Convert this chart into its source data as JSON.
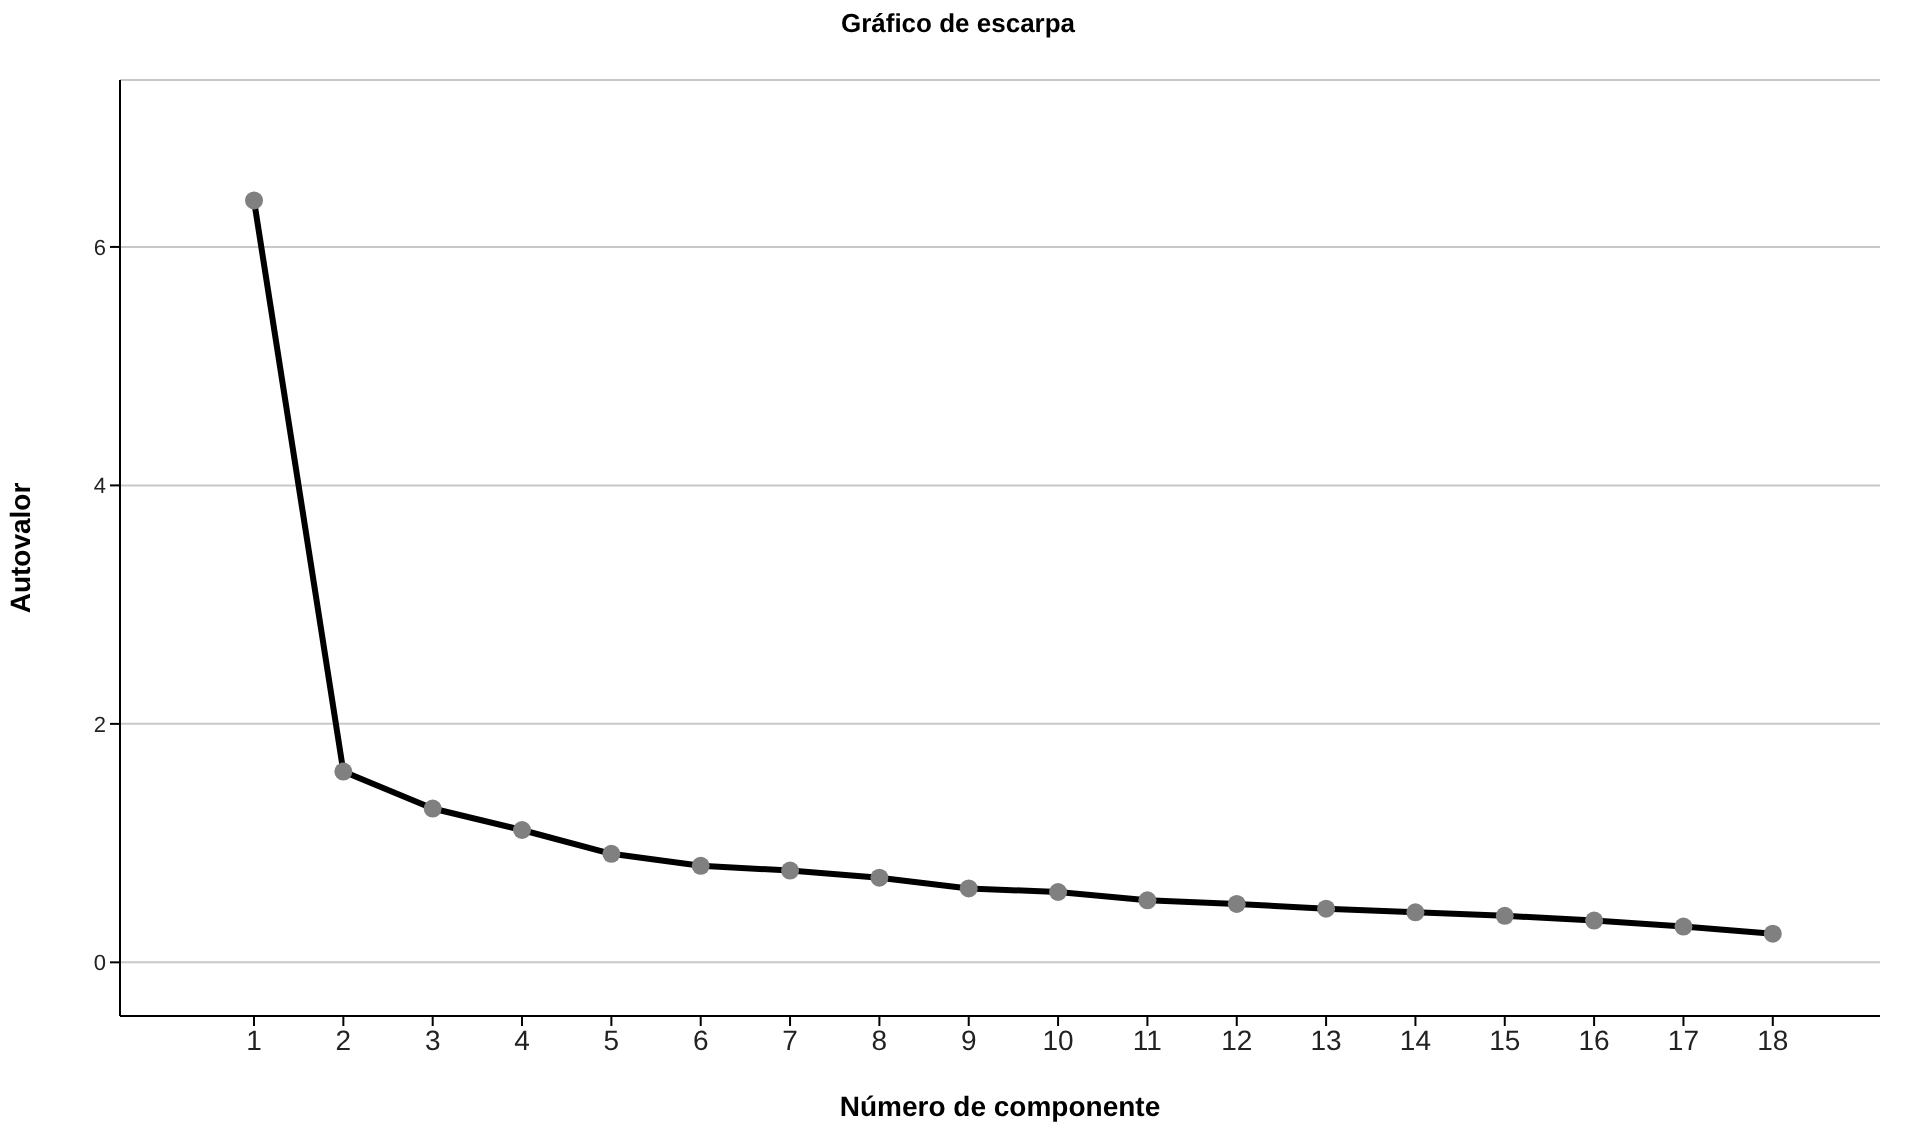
{
  "chart_data": {
    "type": "line",
    "title": "Gráfico de escarpa",
    "xlabel": "Número de componente",
    "ylabel": "Autovalor",
    "x": [
      1,
      2,
      3,
      4,
      5,
      6,
      7,
      8,
      9,
      10,
      11,
      12,
      13,
      14,
      15,
      16,
      17,
      18
    ],
    "series": [
      {
        "color": "#000000",
        "values": [
          6.39,
          1.6,
          1.29,
          1.11,
          0.91,
          0.81,
          0.77,
          0.71,
          0.62,
          0.59,
          0.52,
          0.49,
          0.45,
          0.42,
          0.39,
          0.35,
          0.3,
          0.24
        ]
      }
    ],
    "xlim": [
      -0.5,
      19.2
    ],
    "xticks": [
      1,
      2,
      3,
      4,
      5,
      6,
      7,
      8,
      9,
      10,
      11,
      12,
      13,
      14,
      15,
      16,
      17,
      18
    ],
    "ylim": [
      -0.45,
      7.4
    ],
    "yticks": [
      0,
      2,
      4,
      6
    ],
    "grid": "y",
    "marker": "circle",
    "line_style": "solid"
  }
}
